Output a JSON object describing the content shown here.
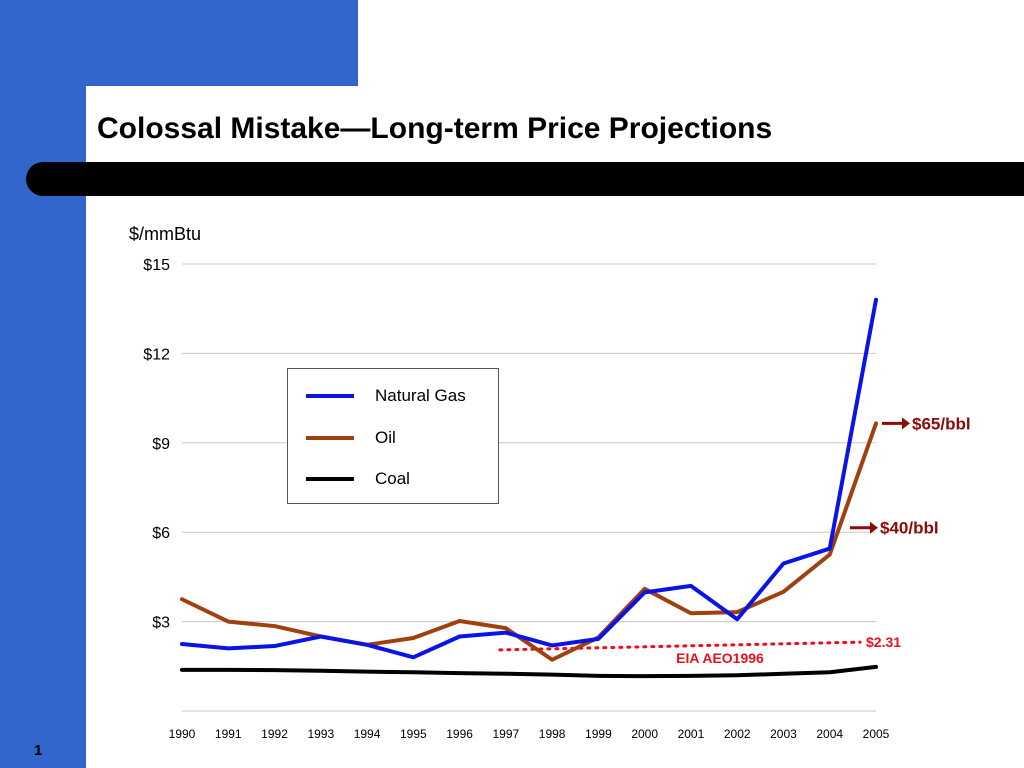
{
  "slide": {
    "title": "Colossal Mistake—Long-term Price Projections",
    "page_number": "1"
  },
  "colors": {
    "sidebar": "#3366cc",
    "natural_gas": "#0a14e6",
    "oil": "#a0400f",
    "coal": "#000000",
    "annotation_dark_red": "#8b0a0a",
    "projection_red": "#e8101e"
  },
  "chart_data": {
    "type": "line",
    "title": "",
    "xlabel": "",
    "ylabel": "$/mmBtu",
    "categories": [
      "1990",
      "1991",
      "1992",
      "1993",
      "1994",
      "1995",
      "1996",
      "1997",
      "1998",
      "1999",
      "2000",
      "2001",
      "2002",
      "2003",
      "2004",
      "2005"
    ],
    "y_ticks": [
      {
        "value": 3,
        "label": "$3"
      },
      {
        "value": 6,
        "label": "$6"
      },
      {
        "value": 9,
        "label": "$9"
      },
      {
        "value": 12,
        "label": "$12"
      },
      {
        "value": 15,
        "label": "$15"
      }
    ],
    "ylim": [
      0,
      15
    ],
    "grid": true,
    "legend_position": "upper-left",
    "series": [
      {
        "name": "Natural Gas",
        "color": "#0a14e6",
        "values": [
          2.25,
          2.1,
          2.18,
          2.5,
          2.22,
          1.8,
          2.5,
          2.63,
          2.2,
          2.42,
          3.98,
          4.2,
          3.08,
          4.95,
          5.45,
          13.8
        ]
      },
      {
        "name": "Oil",
        "color": "#a0400f",
        "values": [
          3.75,
          3.0,
          2.85,
          2.5,
          2.22,
          2.45,
          3.02,
          2.78,
          1.72,
          2.47,
          4.1,
          3.28,
          3.32,
          4.0,
          5.25,
          9.65
        ]
      },
      {
        "name": "Coal",
        "color": "#000000",
        "values": [
          1.38,
          1.38,
          1.37,
          1.35,
          1.32,
          1.3,
          1.27,
          1.25,
          1.22,
          1.18,
          1.17,
          1.18,
          1.2,
          1.25,
          1.3,
          1.48
        ]
      }
    ],
    "projection": {
      "label": "EIA AEO1996",
      "value_label": "$2.31",
      "start": {
        "x": "1997",
        "y": 2.05
      },
      "end": {
        "x": "2005",
        "y": 2.31
      }
    },
    "annotations": [
      {
        "label": "$65/bbl",
        "y": 9.65
      },
      {
        "label": "$40/bbl",
        "y": 6.15
      }
    ]
  }
}
